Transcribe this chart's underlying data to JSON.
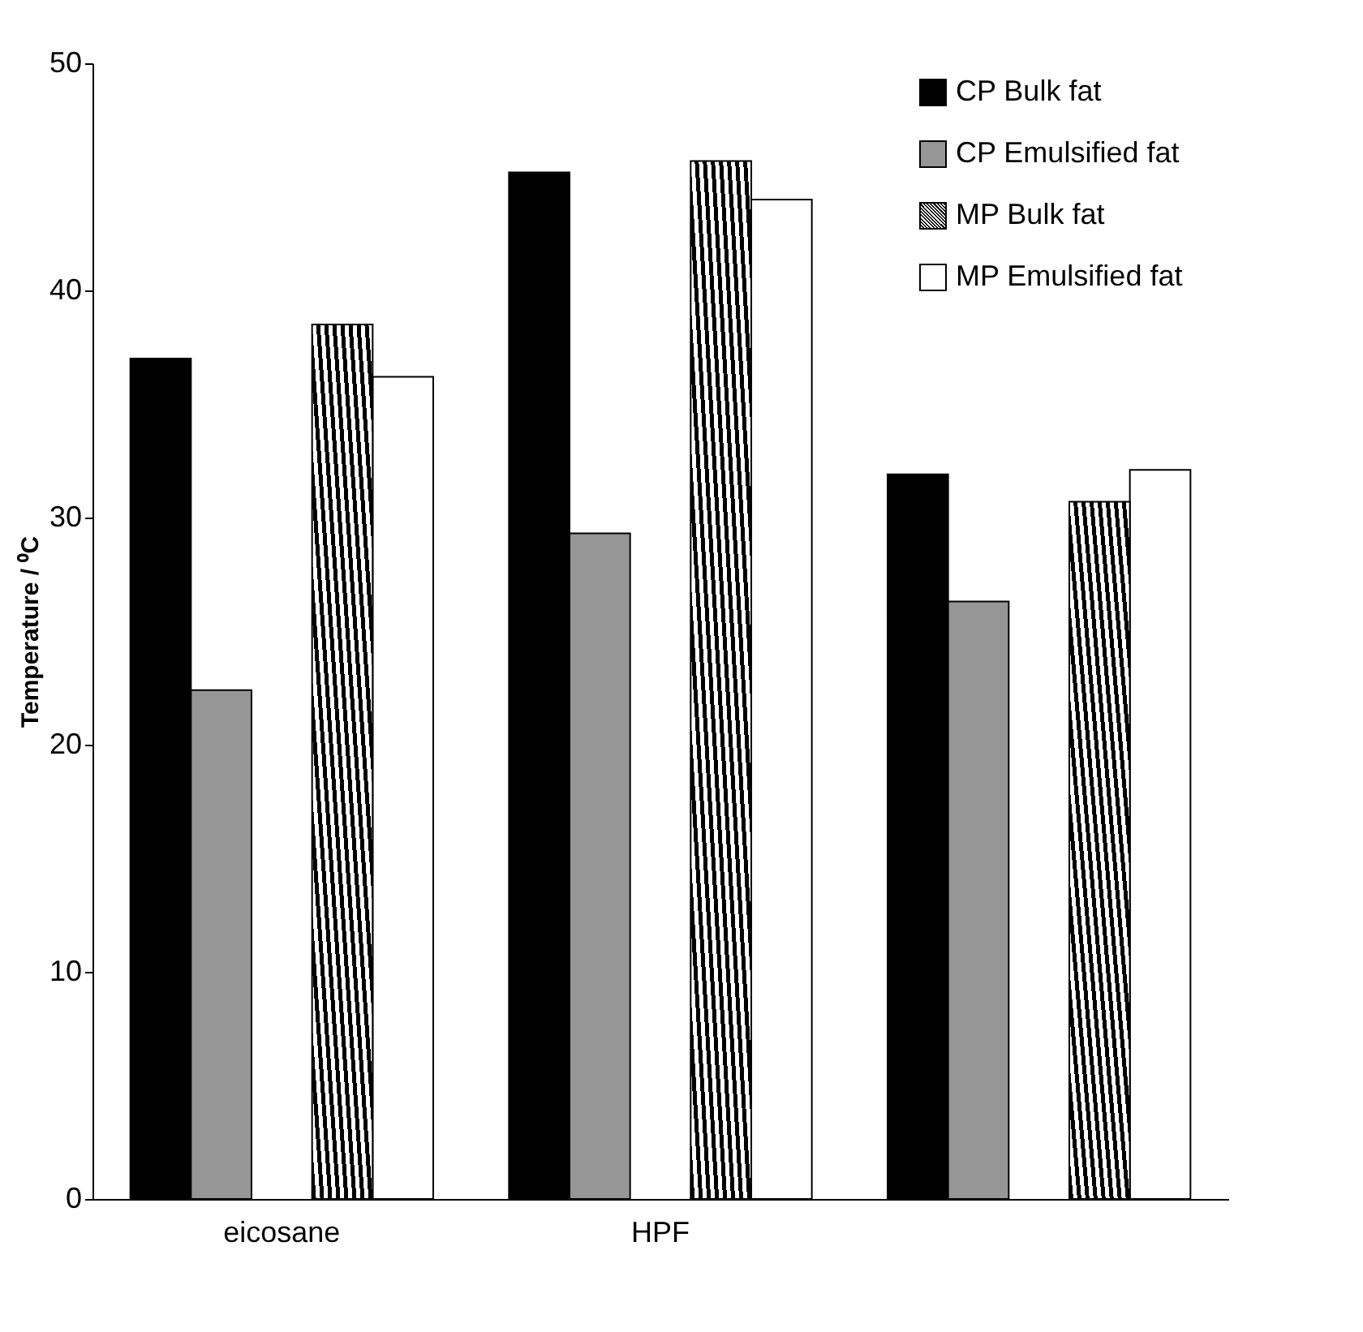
{
  "chart_data": {
    "type": "bar",
    "categories": [
      "eicosane",
      "HPF",
      null
    ],
    "ylabel": "Temperature / ⁰C",
    "ylim": [
      0,
      50
    ],
    "yticks": [
      0,
      10,
      20,
      30,
      40,
      50
    ],
    "grid": false,
    "legend": "top right",
    "series": [
      {
        "name": "CP Bulk fat",
        "color": "#000000",
        "values": [
          37.0,
          45.2,
          31.9
        ]
      },
      {
        "name": "CP Emulsified fat",
        "color": "#969696",
        "values": [
          22.4,
          29.3,
          26.3
        ]
      },
      {
        "name": "MP Bulk fat",
        "color": "#000000",
        "values": [
          38.5,
          45.7,
          30.7
        ]
      },
      {
        "name": "MP Emulsified fat",
        "color": "#ffffff",
        "values": [
          36.2,
          44.0,
          32.1
        ]
      }
    ]
  }
}
